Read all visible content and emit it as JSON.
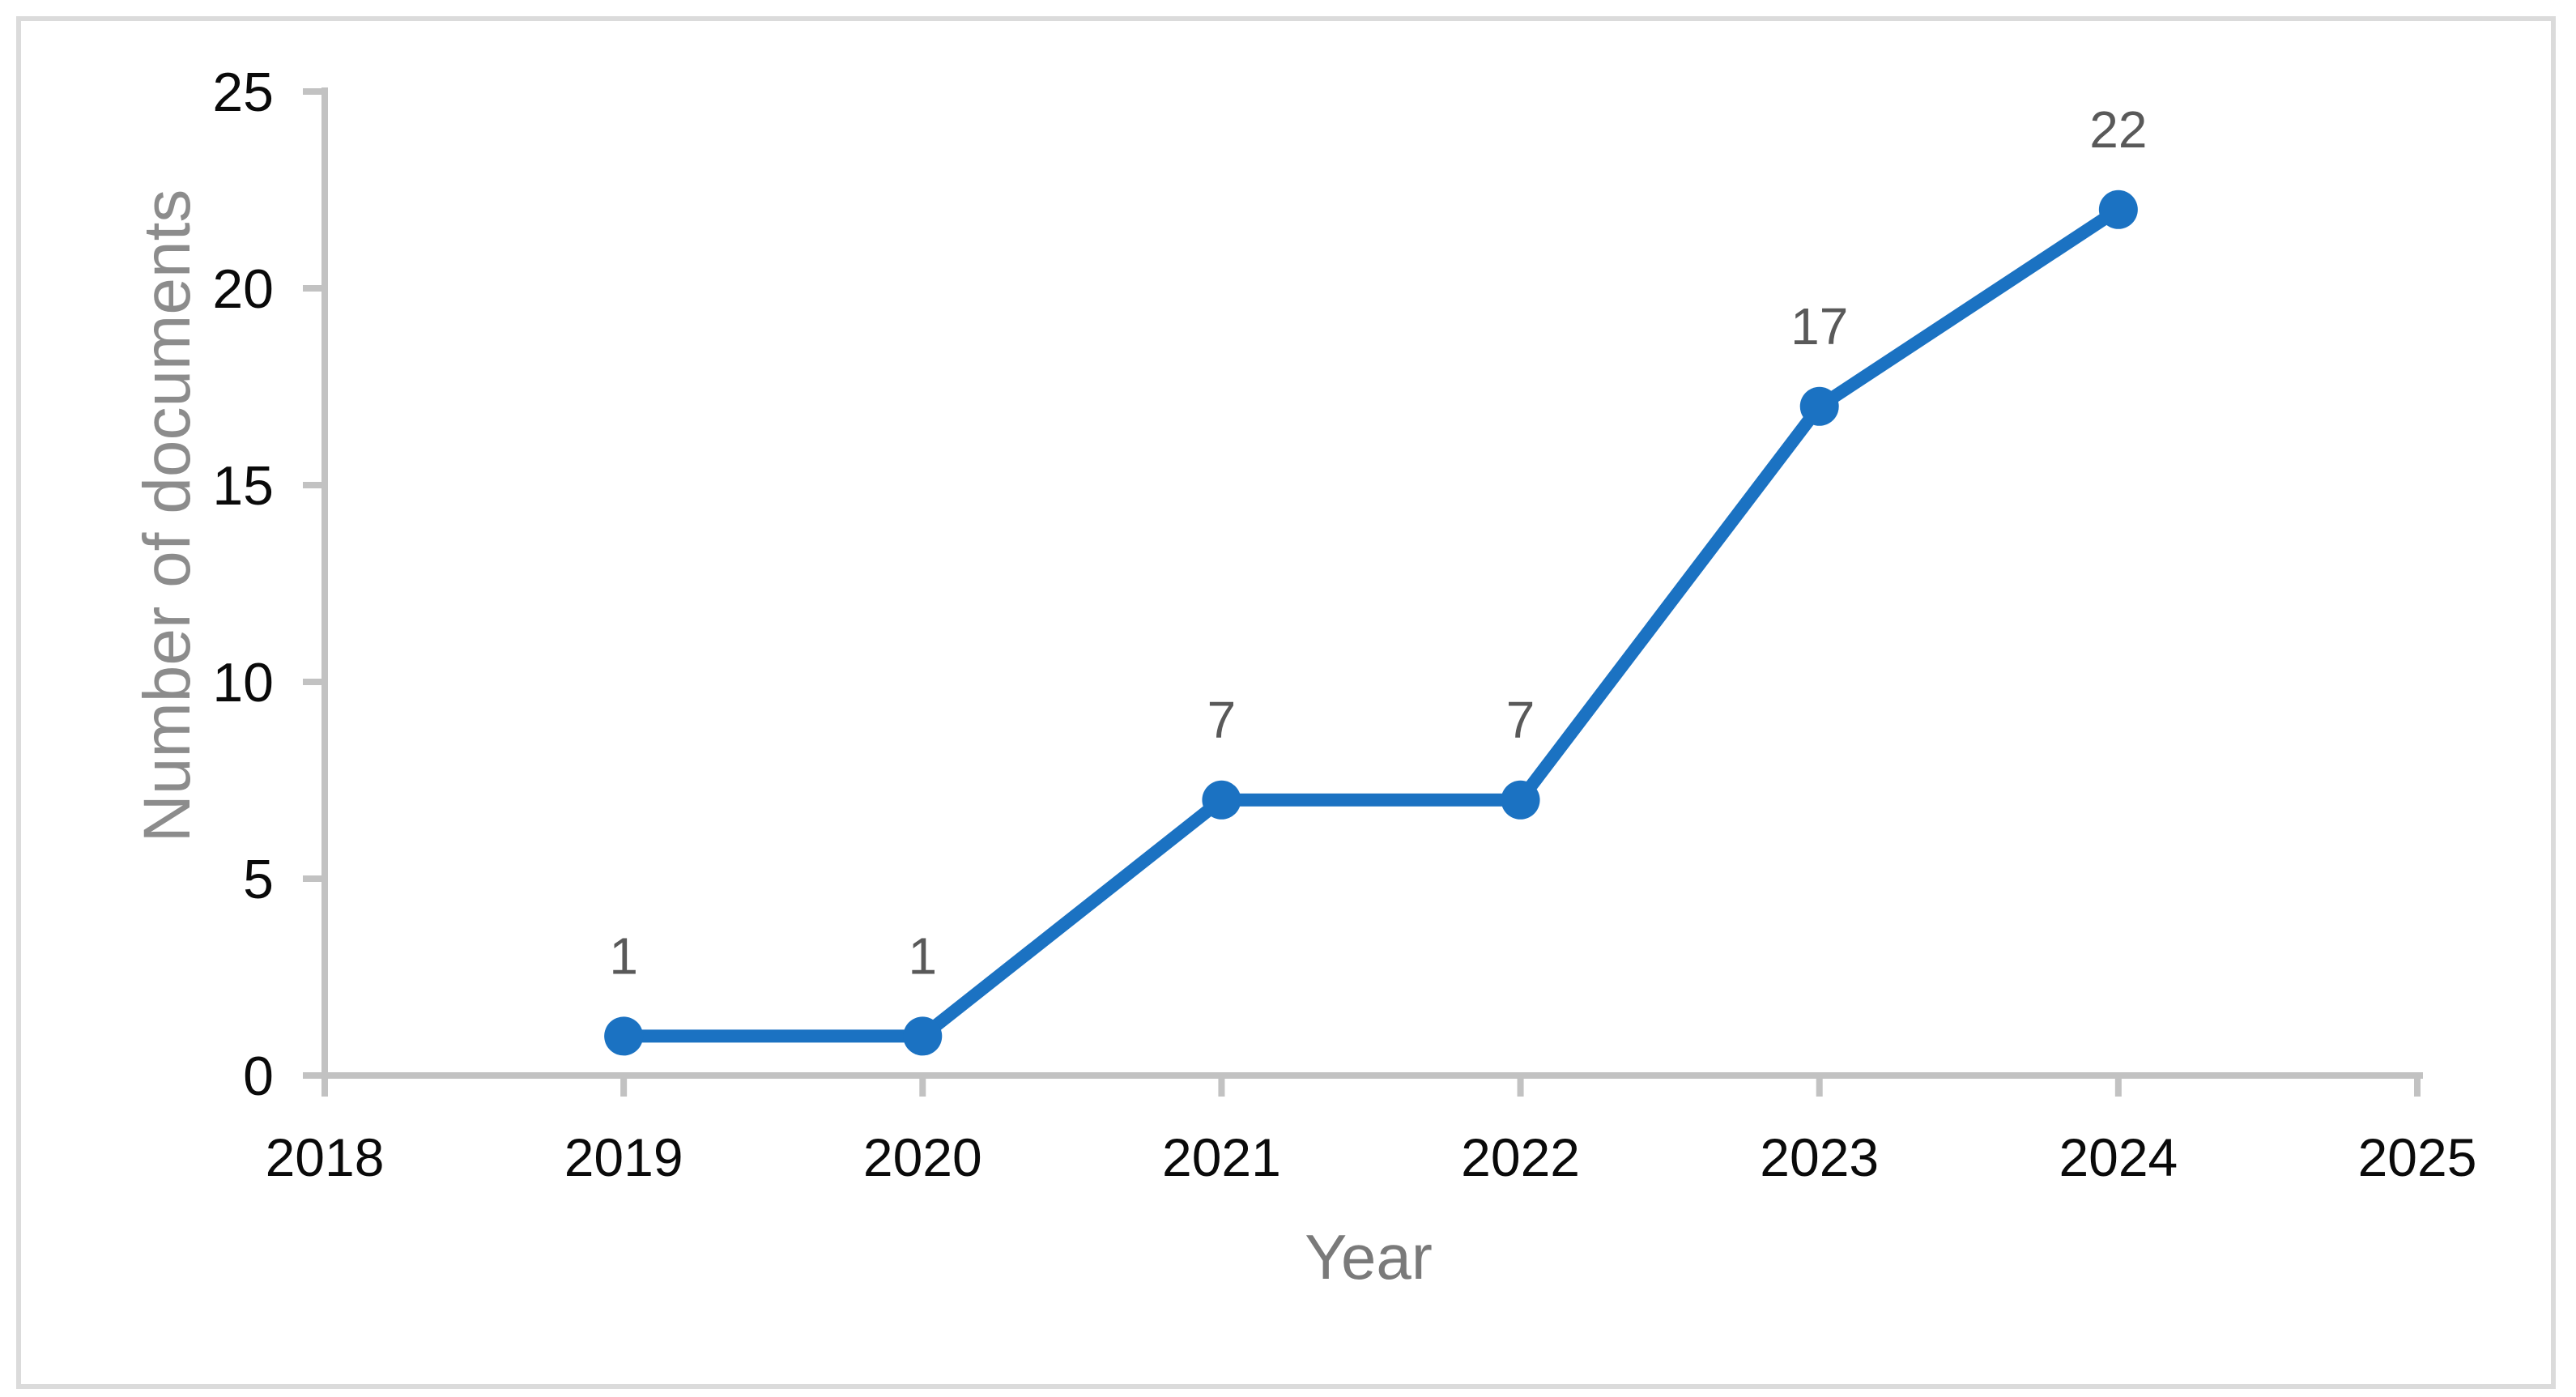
{
  "figure": {
    "kind": "line chart figure"
  },
  "chart_data": {
    "type": "line",
    "title": "",
    "xlabel": "Year",
    "ylabel": "Number of documents",
    "x": [
      2019,
      2020,
      2021,
      2022,
      2023,
      2024
    ],
    "values": [
      1,
      1,
      7,
      7,
      17,
      22
    ],
    "data_labels": [
      "1",
      "1",
      "7",
      "7",
      "17",
      "22"
    ],
    "x_ticks": [
      "2018",
      "2019",
      "2020",
      "2021",
      "2022",
      "2023",
      "2024",
      "2025"
    ],
    "x_tick_years": [
      2018,
      2019,
      2020,
      2021,
      2022,
      2023,
      2024,
      2025
    ],
    "y_ticks": [
      "0",
      "5",
      "10",
      "15",
      "20",
      "25"
    ],
    "y_tick_values": [
      0,
      5,
      10,
      15,
      20,
      25
    ],
    "xlim": [
      2018,
      2025
    ],
    "ylim": [
      0,
      25
    ],
    "grid": false,
    "legend": false,
    "marker": "circle",
    "colors": {
      "line": "#1B72C2",
      "marker_fill": "#1B72C2",
      "data_label": "#595959",
      "tick_label": "#0A0A0A",
      "axis_line": "#C2C2C2",
      "x_axis_title": "#7A7A7A",
      "y_axis_title": "#8C8C8C",
      "border": "#DBDBDB"
    }
  }
}
